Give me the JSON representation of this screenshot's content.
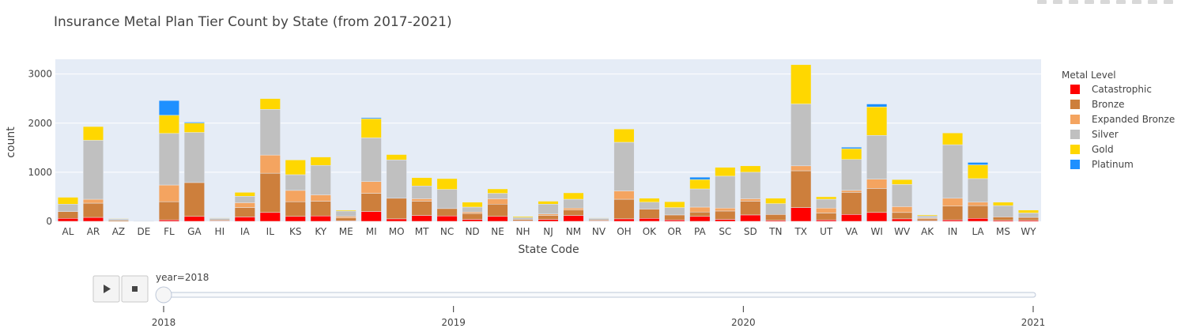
{
  "chart_data": {
    "type": "bar",
    "stacked": true,
    "title": "Insurance Metal Plan Tier Count by State (from 2017-2021)",
    "xlabel": "State Code",
    "ylabel": "count",
    "ylim": [
      0,
      3300
    ],
    "yticks": [
      0,
      1000,
      2000,
      3000
    ],
    "legend_title": "Metal Level",
    "legend_position": "right",
    "grid": true,
    "categories": [
      "AL",
      "AR",
      "AZ",
      "DE",
      "FL",
      "GA",
      "HI",
      "IA",
      "IL",
      "KS",
      "KY",
      "ME",
      "MI",
      "MO",
      "MT",
      "NC",
      "ND",
      "NE",
      "NH",
      "NJ",
      "NM",
      "NV",
      "OH",
      "OK",
      "OR",
      "PA",
      "SC",
      "SD",
      "TN",
      "TX",
      "UT",
      "VA",
      "WI",
      "WV",
      "AK",
      "IN",
      "LA",
      "MS",
      "WY"
    ],
    "series": [
      {
        "name": "Catastrophic",
        "color": "#ff0000",
        "values": [
          60,
          80,
          0,
          0,
          30,
          100,
          10,
          90,
          180,
          100,
          110,
          10,
          200,
          50,
          120,
          110,
          40,
          100,
          10,
          40,
          120,
          10,
          50,
          60,
          30,
          100,
          40,
          130,
          20,
          280,
          30,
          140,
          180,
          50,
          10,
          30,
          60,
          20,
          20
        ]
      },
      {
        "name": "Bronze",
        "color": "#cd7f3c",
        "values": [
          140,
          290,
          20,
          0,
          370,
          690,
          20,
          190,
          800,
          300,
          300,
          60,
          370,
          420,
          290,
          150,
          120,
          250,
          30,
          80,
          110,
          20,
          400,
          190,
          100,
          90,
          170,
          280,
          120,
          750,
          140,
          450,
          490,
          130,
          40,
          280,
          260,
          70,
          60
        ]
      },
      {
        "name": "Expanded Bronze",
        "color": "#f4a460",
        "values": [
          0,
          80,
          0,
          0,
          340,
          0,
          0,
          100,
          370,
          230,
          130,
          30,
          240,
          0,
          50,
          0,
          30,
          110,
          0,
          30,
          40,
          0,
          170,
          0,
          0,
          100,
          60,
          50,
          0,
          100,
          100,
          40,
          190,
          120,
          20,
          160,
          70,
          0,
          0
        ]
      },
      {
        "name": "Silver",
        "color": "#c0c0c0",
        "values": [
          150,
          1200,
          30,
          10,
          1050,
          1020,
          30,
          130,
          930,
          320,
          600,
          110,
          890,
          780,
          260,
          390,
          100,
          110,
          40,
          200,
          180,
          30,
          990,
          140,
          150,
          370,
          650,
          540,
          220,
          1260,
          180,
          630,
          890,
          450,
          40,
          1090,
          480,
          230,
          90
        ]
      },
      {
        "name": "Gold",
        "color": "#ffd700",
        "values": [
          140,
          280,
          10,
          0,
          370,
          190,
          10,
          80,
          220,
          300,
          170,
          20,
          390,
          110,
          170,
          220,
          100,
          90,
          20,
          60,
          130,
          10,
          270,
          80,
          120,
          190,
          180,
          130,
          110,
          800,
          50,
          220,
          580,
          100,
          20,
          240,
          280,
          70,
          60
        ]
      },
      {
        "name": "Platinum",
        "color": "#1e90ff",
        "values": [
          0,
          0,
          0,
          0,
          300,
          20,
          0,
          0,
          0,
          0,
          0,
          0,
          20,
          0,
          0,
          0,
          0,
          0,
          0,
          0,
          0,
          0,
          0,
          0,
          0,
          50,
          0,
          0,
          0,
          0,
          0,
          30,
          60,
          0,
          0,
          0,
          50,
          0,
          0
        ]
      }
    ]
  },
  "slider": {
    "current_label": "year=2018",
    "ticks": [
      "2018",
      "2019",
      "2020",
      "2021"
    ],
    "selected_index": 0
  },
  "controls": {
    "play_icon": "play-icon",
    "stop_icon": "stop-icon"
  }
}
